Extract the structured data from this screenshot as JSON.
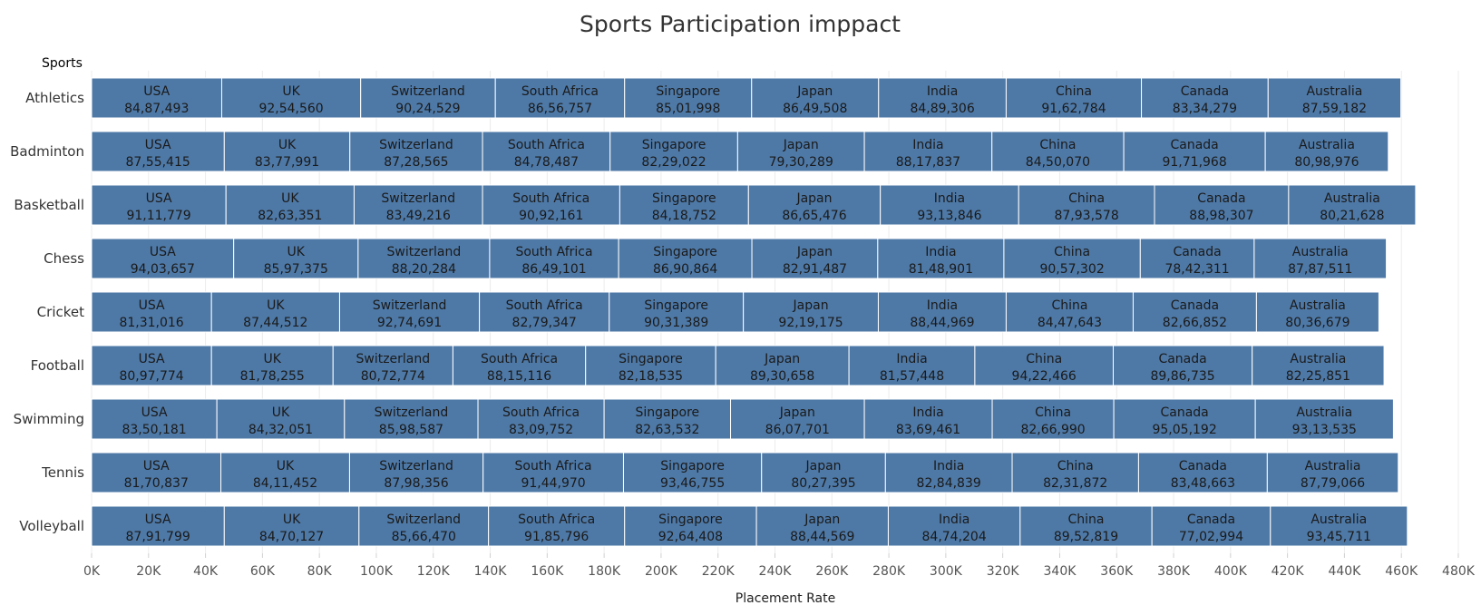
{
  "chart_data": {
    "type": "bar",
    "orientation": "horizontal",
    "stacked": true,
    "title": "Sports Participation imppact",
    "xlabel": "Placement Rate",
    "row_header": "Sports",
    "xlim": [
      0,
      480000
    ],
    "x_ticks": [
      0,
      20000,
      40000,
      60000,
      80000,
      100000,
      120000,
      140000,
      160000,
      180000,
      200000,
      220000,
      240000,
      260000,
      280000,
      300000,
      320000,
      340000,
      360000,
      380000,
      400000,
      420000,
      440000,
      460000,
      480000
    ],
    "x_tick_labels": [
      "0K",
      "20K",
      "40K",
      "60K",
      "80K",
      "100K",
      "120K",
      "140K",
      "160K",
      "180K",
      "200K",
      "220K",
      "240K",
      "260K",
      "280K",
      "300K",
      "320K",
      "340K",
      "360K",
      "380K",
      "400K",
      "420K",
      "440K",
      "460K",
      "480K"
    ],
    "grid": true,
    "bar_color": "#4e79a7",
    "rows": [
      {
        "sport": "Athletics",
        "segments": [
          {
            "country": "USA",
            "value": 45700,
            "label": "84,87,493"
          },
          {
            "country": "UK",
            "value": 48800,
            "label": "92,54,560"
          },
          {
            "country": "Switzerland",
            "value": 47300,
            "label": "90,24,529"
          },
          {
            "country": "South Africa",
            "value": 45400,
            "label": "86,56,757"
          },
          {
            "country": "Singapore",
            "value": 44600,
            "label": "85,01,998"
          },
          {
            "country": "Japan",
            "value": 44600,
            "label": "86,49,508"
          },
          {
            "country": "India",
            "value": 44800,
            "label": "84,89,306"
          },
          {
            "country": "China",
            "value": 47500,
            "label": "91,62,784"
          },
          {
            "country": "Canada",
            "value": 44500,
            "label": "83,34,279"
          },
          {
            "country": "Australia",
            "value": 46600,
            "label": "87,59,182"
          }
        ]
      },
      {
        "sport": "Badminton",
        "segments": [
          {
            "country": "USA",
            "value": 46600,
            "label": "87,55,415"
          },
          {
            "country": "UK",
            "value": 44100,
            "label": "83,77,991"
          },
          {
            "country": "Switzerland",
            "value": 46600,
            "label": "87,28,565"
          },
          {
            "country": "South Africa",
            "value": 44800,
            "label": "84,78,487"
          },
          {
            "country": "Singapore",
            "value": 44800,
            "label": "82,29,022"
          },
          {
            "country": "Japan",
            "value": 44500,
            "label": "79,30,289"
          },
          {
            "country": "India",
            "value": 44800,
            "label": "88,17,837"
          },
          {
            "country": "China",
            "value": 46300,
            "label": "84,50,070"
          },
          {
            "country": "Canada",
            "value": 49700,
            "label": "91,71,968"
          },
          {
            "country": "Australia",
            "value": 43200,
            "label": "80,98,976"
          }
        ]
      },
      {
        "sport": "Basketball",
        "segments": [
          {
            "country": "USA",
            "value": 47200,
            "label": "91,11,779"
          },
          {
            "country": "UK",
            "value": 45000,
            "label": "82,63,351"
          },
          {
            "country": "Switzerland",
            "value": 45100,
            "label": "83,49,216"
          },
          {
            "country": "South Africa",
            "value": 48200,
            "label": "90,92,161"
          },
          {
            "country": "Singapore",
            "value": 45200,
            "label": "84,18,752"
          },
          {
            "country": "Japan",
            "value": 46300,
            "label": "86,65,476"
          },
          {
            "country": "India",
            "value": 48600,
            "label": "93,13,846"
          },
          {
            "country": "China",
            "value": 47700,
            "label": "87,93,578"
          },
          {
            "country": "Canada",
            "value": 47100,
            "label": "88,98,307"
          },
          {
            "country": "Australia",
            "value": 44600,
            "label": "80,21,628"
          }
        ]
      },
      {
        "sport": "Chess",
        "segments": [
          {
            "country": "USA",
            "value": 49900,
            "label": "94,03,657"
          },
          {
            "country": "UK",
            "value": 43700,
            "label": "85,97,375"
          },
          {
            "country": "Switzerland",
            "value": 46200,
            "label": "88,20,284"
          },
          {
            "country": "South Africa",
            "value": 45300,
            "label": "86,49,101"
          },
          {
            "country": "Singapore",
            "value": 46800,
            "label": "86,90,864"
          },
          {
            "country": "Japan",
            "value": 44200,
            "label": "82,91,487"
          },
          {
            "country": "India",
            "value": 44300,
            "label": "81,48,901"
          },
          {
            "country": "China",
            "value": 47900,
            "label": "90,57,302"
          },
          {
            "country": "Canada",
            "value": 40000,
            "label": "78,42,311"
          },
          {
            "country": "Australia",
            "value": 46400,
            "label": "87,87,511"
          }
        ]
      },
      {
        "sport": "Cricket",
        "segments": [
          {
            "country": "USA",
            "value": 42100,
            "label": "81,31,016"
          },
          {
            "country": "UK",
            "value": 45000,
            "label": "87,44,512"
          },
          {
            "country": "Switzerland",
            "value": 49100,
            "label": "92,74,691"
          },
          {
            "country": "South Africa",
            "value": 45600,
            "label": "82,79,347"
          },
          {
            "country": "Singapore",
            "value": 47100,
            "label": "90,31,389"
          },
          {
            "country": "Japan",
            "value": 47400,
            "label": "92,19,175"
          },
          {
            "country": "India",
            "value": 44900,
            "label": "88,44,969"
          },
          {
            "country": "China",
            "value": 44600,
            "label": "84,47,643"
          },
          {
            "country": "Canada",
            "value": 43300,
            "label": "82,66,852"
          },
          {
            "country": "Australia",
            "value": 43000,
            "label": "80,36,679"
          }
        ]
      },
      {
        "sport": "Football",
        "segments": [
          {
            "country": "USA",
            "value": 42100,
            "label": "80,97,774"
          },
          {
            "country": "UK",
            "value": 42700,
            "label": "81,78,255"
          },
          {
            "country": "Switzerland",
            "value": 42100,
            "label": "80,72,774"
          },
          {
            "country": "South Africa",
            "value": 46600,
            "label": "88,15,116"
          },
          {
            "country": "Singapore",
            "value": 45700,
            "label": "82,18,535"
          },
          {
            "country": "Japan",
            "value": 46800,
            "label": "89,30,658"
          },
          {
            "country": "India",
            "value": 44200,
            "label": "81,57,448"
          },
          {
            "country": "China",
            "value": 48600,
            "label": "94,22,466"
          },
          {
            "country": "Canada",
            "value": 48800,
            "label": "89,86,735"
          },
          {
            "country": "Australia",
            "value": 46300,
            "label": "82,25,851"
          }
        ]
      },
      {
        "sport": "Swimming",
        "segments": [
          {
            "country": "USA",
            "value": 44000,
            "label": "83,50,181"
          },
          {
            "country": "UK",
            "value": 44800,
            "label": "84,32,051"
          },
          {
            "country": "Switzerland",
            "value": 46900,
            "label": "85,98,587"
          },
          {
            "country": "South Africa",
            "value": 44300,
            "label": "83,09,752"
          },
          {
            "country": "Singapore",
            "value": 44400,
            "label": "82,63,532"
          },
          {
            "country": "Japan",
            "value": 47000,
            "label": "86,07,701"
          },
          {
            "country": "India",
            "value": 44900,
            "label": "83,69,461"
          },
          {
            "country": "China",
            "value": 42700,
            "label": "82,66,990"
          },
          {
            "country": "Canada",
            "value": 49700,
            "label": "95,05,192"
          },
          {
            "country": "Australia",
            "value": 48500,
            "label": "93,13,535"
          }
        ]
      },
      {
        "sport": "Tennis",
        "segments": [
          {
            "country": "USA",
            "value": 45400,
            "label": "81,70,837"
          },
          {
            "country": "UK",
            "value": 45200,
            "label": "84,11,452"
          },
          {
            "country": "Switzerland",
            "value": 46900,
            "label": "87,98,356"
          },
          {
            "country": "South Africa",
            "value": 49300,
            "label": "91,44,970"
          },
          {
            "country": "Singapore",
            "value": 48500,
            "label": "93,46,755"
          },
          {
            "country": "Japan",
            "value": 43500,
            "label": "80,27,395"
          },
          {
            "country": "India",
            "value": 44500,
            "label": "82,84,839"
          },
          {
            "country": "China",
            "value": 44400,
            "label": "82,31,872"
          },
          {
            "country": "Canada",
            "value": 45200,
            "label": "83,48,663"
          },
          {
            "country": "Australia",
            "value": 46000,
            "label": "87,79,066"
          }
        ]
      },
      {
        "sport": "Volleyball",
        "segments": [
          {
            "country": "USA",
            "value": 46600,
            "label": "87,91,799"
          },
          {
            "country": "UK",
            "value": 47300,
            "label": "84,70,127"
          },
          {
            "country": "Switzerland",
            "value": 45500,
            "label": "85,66,470"
          },
          {
            "country": "South Africa",
            "value": 47800,
            "label": "91,85,796"
          },
          {
            "country": "Singapore",
            "value": 46300,
            "label": "92,64,408"
          },
          {
            "country": "Japan",
            "value": 46300,
            "label": "88,44,569"
          },
          {
            "country": "India",
            "value": 46300,
            "label": "84,74,204"
          },
          {
            "country": "China",
            "value": 46300,
            "label": "89,52,819"
          },
          {
            "country": "Canada",
            "value": 41600,
            "label": "77,02,994"
          },
          {
            "country": "Australia",
            "value": 48100,
            "label": "93,45,711"
          }
        ]
      }
    ]
  }
}
